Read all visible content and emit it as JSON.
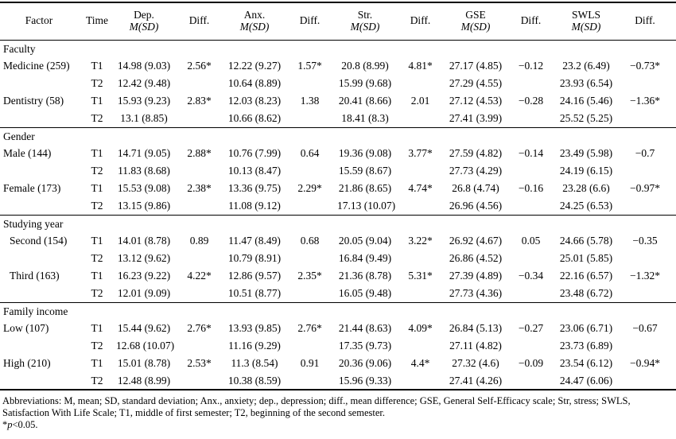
{
  "table": {
    "headers": [
      {
        "label": "Factor",
        "sub": ""
      },
      {
        "label": "Time",
        "sub": ""
      },
      {
        "label": "Dep.",
        "sub": "M(SD)"
      },
      {
        "label": "Diff.",
        "sub": ""
      },
      {
        "label": "Anx.",
        "sub": "M(SD)"
      },
      {
        "label": "Diff.",
        "sub": ""
      },
      {
        "label": "Str.",
        "sub": "M(SD)"
      },
      {
        "label": "Diff.",
        "sub": ""
      },
      {
        "label": "GSE",
        "sub": "M(SD)"
      },
      {
        "label": "Diff.",
        "sub": ""
      },
      {
        "label": "SWLS",
        "sub": "M(SD)"
      },
      {
        "label": "Diff.",
        "sub": ""
      }
    ],
    "sections": [
      {
        "heading": "Faculty",
        "rows": [
          {
            "factor": "Medicine (259)",
            "time": "T1",
            "indent": false,
            "cells": [
              "14.98 (9.03)",
              "2.56*",
              "12.22 (9.27)",
              "1.57*",
              "20.8 (8.99)",
              "4.81*",
              "27.17 (4.85)",
              "−0.12",
              "23.2 (6.49)",
              "−0.73*"
            ]
          },
          {
            "factor": "",
            "time": "T2",
            "indent": false,
            "cells": [
              "12.42 (9.48)",
              "",
              "10.64 (8.89)",
              "",
              "15.99 (9.68)",
              "",
              "27.29 (4.55)",
              "",
              "23.93 (6.54)",
              ""
            ]
          },
          {
            "factor": "Dentistry (58)",
            "time": "T1",
            "indent": false,
            "cells": [
              "15.93 (9.23)",
              "2.83*",
              "12.03 (8.23)",
              "1.38",
              "20.41 (8.66)",
              "2.01",
              "27.12 (4.53)",
              "−0.28",
              "24.16 (5.46)",
              "−1.36*"
            ]
          },
          {
            "factor": "",
            "time": "T2",
            "indent": false,
            "cells": [
              "13.1 (8.85)",
              "",
              "10.66 (8.62)",
              "",
              "18.41 (8.3)",
              "",
              "27.41 (3.99)",
              "",
              "25.52 (5.25)",
              ""
            ]
          }
        ]
      },
      {
        "heading": "Gender",
        "rows": [
          {
            "factor": "Male (144)",
            "time": "T1",
            "indent": false,
            "cells": [
              "14.71 (9.05)",
              "2.88*",
              "10.76 (7.99)",
              "0.64",
              "19.36 (9.08)",
              "3.77*",
              "27.59 (4.82)",
              "−0.14",
              "23.49 (5.98)",
              "−0.7"
            ]
          },
          {
            "factor": "",
            "time": "T2",
            "indent": false,
            "cells": [
              "11.83 (8.68)",
              "",
              "10.13 (8.47)",
              "",
              "15.59 (8.67)",
              "",
              "27.73 (4.29)",
              "",
              "24.19 (6.15)",
              ""
            ]
          },
          {
            "factor": "Female (173)",
            "time": "T1",
            "indent": false,
            "cells": [
              "15.53 (9.08)",
              "2.38*",
              "13.36 (9.75)",
              "2.29*",
              "21.86 (8.65)",
              "4.74*",
              "26.8 (4.74)",
              "−0.16",
              "23.28 (6.6)",
              "−0.97*"
            ]
          },
          {
            "factor": "",
            "time": "T2",
            "indent": false,
            "cells": [
              "13.15 (9.86)",
              "",
              "11.08 (9.12)",
              "",
              "17.13 (10.07)",
              "",
              "26.96 (4.56)",
              "",
              "24.25 (6.53)",
              ""
            ]
          }
        ]
      },
      {
        "heading": "Studying year",
        "rows": [
          {
            "factor": "Second (154)",
            "time": "T1",
            "indent": true,
            "cells": [
              "14.01 (8.78)",
              "0.89",
              "11.47 (8.49)",
              "0.68",
              "20.05 (9.04)",
              "3.22*",
              "26.92 (4.67)",
              "0.05",
              "24.66 (5.78)",
              "−0.35"
            ]
          },
          {
            "factor": "",
            "time": "T2",
            "indent": true,
            "cells": [
              "13.12 (9.62)",
              "",
              "10.79 (8.91)",
              "",
              "16.84 (9.49)",
              "",
              "26.86 (4.52)",
              "",
              "25.01 (5.85)",
              ""
            ]
          },
          {
            "factor": "Third (163)",
            "time": "T1",
            "indent": true,
            "cells": [
              "16.23 (9.22)",
              "4.22*",
              "12.86 (9.57)",
              "2.35*",
              "21.36 (8.78)",
              "5.31*",
              "27.39 (4.89)",
              "−0.34",
              "22.16 (6.57)",
              "−1.32*"
            ]
          },
          {
            "factor": "",
            "time": "T2",
            "indent": true,
            "cells": [
              "12.01 (9.09)",
              "",
              "10.51 (8.77)",
              "",
              "16.05 (9.48)",
              "",
              "27.73 (4.36)",
              "",
              "23.48 (6.72)",
              ""
            ]
          }
        ]
      },
      {
        "heading": "Family income",
        "rows": [
          {
            "factor": "Low (107)",
            "time": "T1",
            "indent": false,
            "cells": [
              "15.44 (9.62)",
              "2.76*",
              "13.93 (9.85)",
              "2.76*",
              "21.44 (8.63)",
              "4.09*",
              "26.84 (5.13)",
              "−0.27",
              "23.06 (6.71)",
              "−0.67"
            ]
          },
          {
            "factor": "",
            "time": "T2",
            "indent": false,
            "cells": [
              "12.68 (10.07)",
              "",
              "11.16 (9.29)",
              "",
              "17.35 (9.73)",
              "",
              "27.11 (4.82)",
              "",
              "23.73 (6.89)",
              ""
            ]
          },
          {
            "factor": "High (210)",
            "time": "T1",
            "indent": false,
            "cells": [
              "15.01 (8.78)",
              "2.53*",
              "11.3 (8.54)",
              "0.91",
              "20.36 (9.06)",
              "4.4*",
              "27.32 (4.6)",
              "−0.09",
              "23.54 (6.12)",
              "−0.94*"
            ]
          },
          {
            "factor": "",
            "time": "T2",
            "indent": false,
            "cells": [
              "12.48 (8.99)",
              "",
              "10.38 (8.59)",
              "",
              "15.96 (9.33)",
              "",
              "27.41 (4.26)",
              "",
              "24.47 (6.06)",
              ""
            ]
          }
        ]
      }
    ]
  },
  "footnotes": {
    "abbreviations": "Abbreviations: M, mean; SD, standard deviation; Anx., anxiety; dep., depression; diff., mean difference; GSE, General Self-Efficacy scale; Str, stress; SWLS, Satisfaction With Life Scale; T1, middle of first semester; T2, beginning of the second semester.",
    "significance": {
      "prefix": "*",
      "symbol": "p",
      "suffix": "<0.05."
    }
  }
}
